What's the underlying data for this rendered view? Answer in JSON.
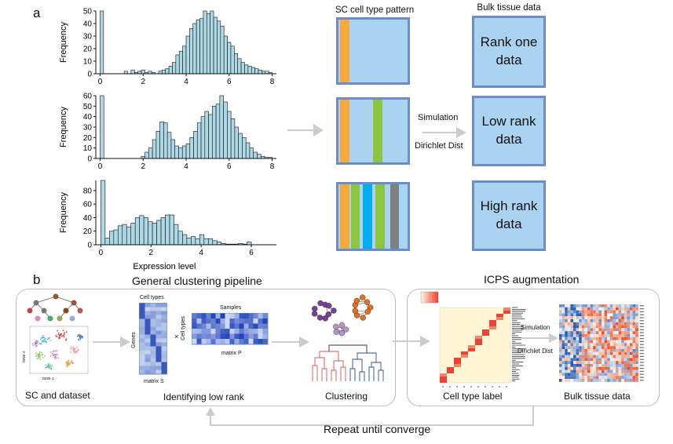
{
  "panel_a": {
    "label": "a",
    "histograms": [
      {
        "ylabel": "Frequency",
        "xlabel": "",
        "xticks": [
          "0",
          "2",
          "4",
          "6",
          "8"
        ],
        "yticks": [
          "0",
          "10",
          "20",
          "30",
          "40",
          "50"
        ],
        "xlim": [
          -0.2,
          8.2
        ],
        "ylim": [
          0,
          50
        ],
        "values": [
          50,
          0,
          0,
          0,
          0,
          0,
          0,
          2,
          0,
          3,
          1,
          2,
          3,
          1,
          2,
          1,
          0,
          2,
          3,
          4,
          6,
          9,
          15,
          18,
          22,
          30,
          36,
          40,
          43,
          44,
          50,
          48,
          50,
          45,
          42,
          38,
          30,
          25,
          22,
          16,
          12,
          9,
          7,
          6,
          5,
          4,
          3,
          2,
          2,
          1
        ]
      },
      {
        "ylabel": "Frequency",
        "xlabel": "",
        "xticks": [
          "0",
          "2",
          "4",
          "6",
          "8"
        ],
        "yticks": [
          "0",
          "10",
          "20",
          "30",
          "40",
          "50",
          "60"
        ],
        "xlim": [
          -0.2,
          8.2
        ],
        "ylim": [
          0,
          60
        ],
        "values": [
          60,
          0,
          0,
          0,
          0,
          0,
          0,
          0,
          0,
          0,
          0,
          2,
          6,
          10,
          18,
          26,
          35,
          34,
          25,
          18,
          12,
          10,
          12,
          14,
          20,
          26,
          34,
          40,
          45,
          42,
          50,
          52,
          60,
          54,
          45,
          38,
          30,
          24,
          20,
          15,
          10,
          6,
          4,
          2,
          1,
          1
        ]
      },
      {
        "ylabel": "Frequency",
        "xlabel": "Expression level",
        "xticks": [
          "0",
          "2",
          "4",
          "6"
        ],
        "yticks": [
          "0",
          "20",
          "40",
          "60",
          "80"
        ],
        "xlim": [
          -0.2,
          7.0
        ],
        "ylim": [
          0,
          95
        ],
        "values": [
          95,
          10,
          20,
          22,
          28,
          30,
          26,
          32,
          40,
          43,
          40,
          34,
          32,
          36,
          40,
          44,
          44,
          30,
          20,
          15,
          10,
          12,
          9,
          15,
          9,
          9,
          6,
          4,
          2,
          1,
          1,
          1,
          2,
          1,
          4
        ]
      }
    ],
    "pattern_title": "SC cell type pattern",
    "bulk_title": "Bulk tissue data",
    "simulation_label": "Simulation",
    "dirichlet_label": "Dirichlet Dist",
    "patterns": [
      {
        "stripes": [
          {
            "color": "#f7a93b"
          }
        ]
      },
      {
        "stripes": [
          {
            "color": "#f7a93b"
          },
          {
            "color": "#8cc63f"
          }
        ]
      },
      {
        "stripes": [
          {
            "color": "#f7a93b"
          },
          {
            "color": "#8cc63f"
          },
          {
            "color": "#00aeef"
          },
          {
            "color": "#8cc63f"
          },
          {
            "color": "#808080"
          }
        ]
      }
    ],
    "bulk_boxes": [
      {
        "line1": "Rank one",
        "line2": "data"
      },
      {
        "line1": "Low rank",
        "line2": "data"
      },
      {
        "line1": "High rank",
        "line2": "data"
      }
    ]
  },
  "panel_b": {
    "label": "b",
    "general_title": "General clustering pipeline",
    "icps_title": "ICPS augmentation",
    "sc_dataset": "SC and dataset",
    "tsne_axis_x": "tSNE-1",
    "tsne_axis_y": "tSNE-2",
    "cell_types": "Cell types",
    "genes": "Genes",
    "matrix_s": "matrix S",
    "samples": "Samples",
    "matrix_p": "matrix P",
    "times": "×",
    "identifying": "Identifying low rank",
    "clustering": "Clustering",
    "cell_type_label": "Cell type label",
    "simulation": "Simulation",
    "dirichlet": "Dirichlet Dist",
    "bulk_tissue": "Bulk tissue data",
    "repeat": "Repeat until converge"
  },
  "colors": {
    "bar_fill": "#add8e6",
    "box_fill": "#a9d3f0",
    "box_border": "#6d8dc9",
    "arrow": "#cccccc",
    "heat_red": "#e83a2b",
    "heat_blue": "#2b63b0"
  }
}
